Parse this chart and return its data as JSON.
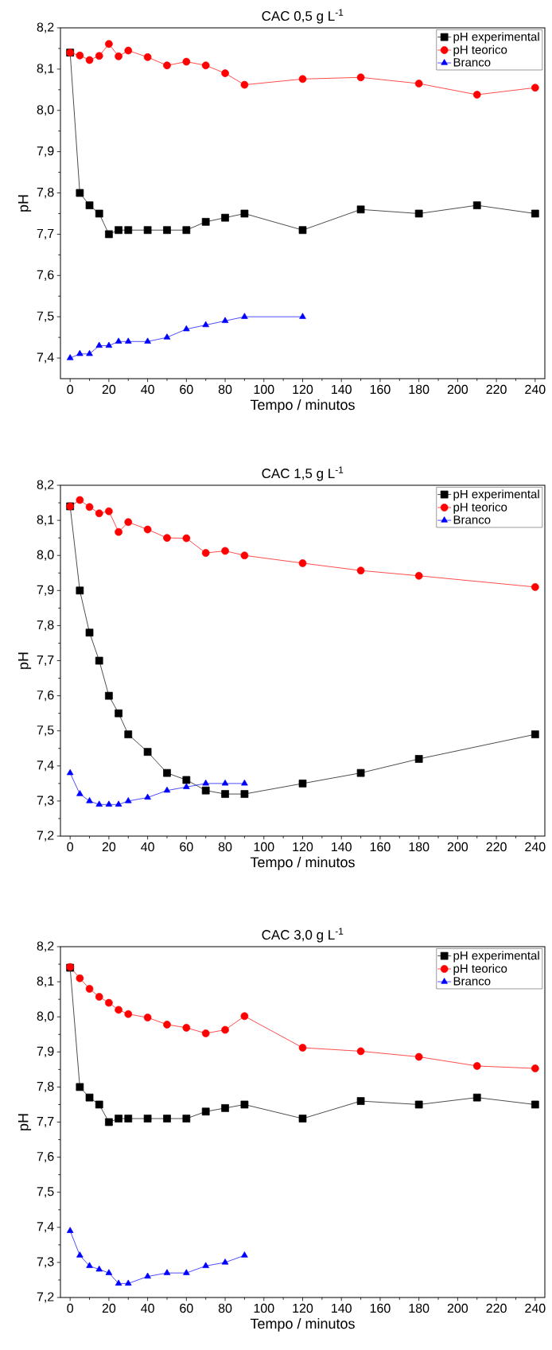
{
  "chart_data": [
    {
      "type": "line",
      "title": "CAC 0,5 g L$^{-1}$",
      "xlabel": "Tempo / minutos",
      "ylabel": "pH",
      "legend": "top right",
      "grid": false,
      "xlim": [
        -5,
        245
      ],
      "ylim": [
        7.35,
        8.2
      ],
      "xticks": [
        0,
        20,
        40,
        60,
        80,
        100,
        120,
        140,
        160,
        180,
        200,
        220,
        240
      ],
      "yticks": [
        {
          "value": 7.4,
          "label": "7,4"
        },
        {
          "value": 7.5,
          "label": "7,5"
        },
        {
          "value": 7.6,
          "label": "7,6"
        },
        {
          "value": 7.7,
          "label": "7,7"
        },
        {
          "value": 7.8,
          "label": "7,8"
        },
        {
          "value": 7.9,
          "label": "7,9"
        },
        {
          "value": 8.0,
          "label": "8,0"
        },
        {
          "value": 8.1,
          "label": "8,1"
        },
        {
          "value": 8.2,
          "label": "8,2"
        }
      ],
      "series": [
        {
          "name": "pH experimental",
          "color": "#000000",
          "marker": "square",
          "x": [
            0,
            5,
            10,
            15,
            20,
            25,
            30,
            40,
            50,
            60,
            70,
            80,
            90,
            120,
            150,
            180,
            210,
            240
          ],
          "values": [
            8.14,
            7.8,
            7.77,
            7.75,
            7.7,
            7.71,
            7.71,
            7.71,
            7.71,
            7.71,
            7.73,
            7.74,
            7.75,
            7.71,
            7.76,
            7.75,
            7.77,
            7.75
          ]
        },
        {
          "name": "pH teorico",
          "color": "#ff0000",
          "marker": "circle",
          "x": [
            0,
            5,
            10,
            15,
            20,
            25,
            30,
            40,
            50,
            60,
            70,
            80,
            90,
            120,
            150,
            180,
            210,
            240
          ],
          "values": [
            8.14,
            8.133,
            8.122,
            8.132,
            8.161,
            8.131,
            8.145,
            8.129,
            8.109,
            8.118,
            8.109,
            8.09,
            8.062,
            8.076,
            8.08,
            8.065,
            8.038,
            8.055
          ]
        },
        {
          "name": "Branco",
          "color": "#0000ff",
          "marker": "triangle",
          "x": [
            0,
            5,
            10,
            15,
            20,
            25,
            30,
            40,
            50,
            60,
            70,
            80,
            90,
            120
          ],
          "values": [
            7.4,
            7.41,
            7.41,
            7.43,
            7.43,
            7.44,
            7.44,
            7.44,
            7.45,
            7.47,
            7.48,
            7.49,
            7.5,
            7.5
          ]
        }
      ]
    },
    {
      "type": "line",
      "title": "CAC 1,5 g L$^{-1}$",
      "xlabel": "Tempo / minutos",
      "ylabel": "pH",
      "legend": "top right",
      "grid": false,
      "xlim": [
        -5,
        245
      ],
      "ylim": [
        7.2,
        8.2
      ],
      "xticks": [
        0,
        20,
        40,
        60,
        80,
        100,
        120,
        140,
        160,
        180,
        200,
        220,
        240
      ],
      "yticks": [
        {
          "value": 7.2,
          "label": "7,2"
        },
        {
          "value": 7.3,
          "label": "7,3"
        },
        {
          "value": 7.4,
          "label": "7,4"
        },
        {
          "value": 7.5,
          "label": "7,5"
        },
        {
          "value": 7.6,
          "label": "7,6"
        },
        {
          "value": 7.7,
          "label": "7,7"
        },
        {
          "value": 7.8,
          "label": "7,8"
        },
        {
          "value": 7.9,
          "label": "7,9"
        },
        {
          "value": 8.0,
          "label": "8,0"
        },
        {
          "value": 8.1,
          "label": "8,1"
        },
        {
          "value": 8.2,
          "label": "8,2"
        }
      ],
      "series": [
        {
          "name": "pH experimental",
          "color": "#000000",
          "marker": "square",
          "x": [
            0,
            5,
            10,
            15,
            20,
            25,
            30,
            40,
            50,
            60,
            70,
            80,
            90,
            120,
            150,
            180,
            240
          ],
          "values": [
            8.14,
            7.9,
            7.78,
            7.7,
            7.6,
            7.55,
            7.49,
            7.44,
            7.38,
            7.36,
            7.33,
            7.32,
            7.32,
            7.35,
            7.38,
            7.42,
            7.49
          ]
        },
        {
          "name": "pH teorico",
          "color": "#ff0000",
          "marker": "circle",
          "x": [
            0,
            5,
            10,
            15,
            20,
            25,
            30,
            40,
            50,
            60,
            70,
            80,
            90,
            120,
            150,
            180,
            240
          ],
          "values": [
            8.14,
            8.158,
            8.138,
            8.12,
            8.126,
            8.067,
            8.095,
            8.074,
            8.05,
            8.049,
            8.007,
            8.013,
            8.0,
            7.978,
            7.957,
            7.942,
            7.91
          ]
        },
        {
          "name": "Branco",
          "color": "#0000ff",
          "marker": "triangle",
          "x": [
            0,
            5,
            10,
            15,
            20,
            25,
            30,
            40,
            50,
            60,
            70,
            80,
            90
          ],
          "values": [
            7.38,
            7.32,
            7.3,
            7.29,
            7.29,
            7.29,
            7.3,
            7.31,
            7.33,
            7.34,
            7.35,
            7.35,
            7.35
          ]
        }
      ]
    },
    {
      "type": "line",
      "title": "CAC 3,0 g L$^{-1}$",
      "xlabel": "Tempo / minutos",
      "ylabel": "pH",
      "legend": "top right",
      "grid": false,
      "xlim": [
        -5,
        245
      ],
      "ylim": [
        7.2,
        8.2
      ],
      "xticks": [
        0,
        20,
        40,
        60,
        80,
        100,
        120,
        140,
        160,
        180,
        200,
        220,
        240
      ],
      "yticks": [
        {
          "value": 7.2,
          "label": "7,2"
        },
        {
          "value": 7.3,
          "label": "7,3"
        },
        {
          "value": 7.4,
          "label": "7,4"
        },
        {
          "value": 7.5,
          "label": "7,5"
        },
        {
          "value": 7.6,
          "label": "7,6"
        },
        {
          "value": 7.7,
          "label": "7,7"
        },
        {
          "value": 7.8,
          "label": "7,8"
        },
        {
          "value": 7.9,
          "label": "7,9"
        },
        {
          "value": 8.0,
          "label": "8,0"
        },
        {
          "value": 8.1,
          "label": "8,1"
        },
        {
          "value": 8.2,
          "label": "8,2"
        }
      ],
      "series": [
        {
          "name": "pH experimental",
          "color": "#000000",
          "marker": "square",
          "x": [
            0,
            5,
            10,
            15,
            20,
            25,
            30,
            40,
            50,
            60,
            70,
            80,
            90,
            120,
            150,
            180,
            210,
            240
          ],
          "values": [
            8.14,
            7.8,
            7.77,
            7.75,
            7.7,
            7.71,
            7.71,
            7.71,
            7.71,
            7.71,
            7.73,
            7.74,
            7.75,
            7.71,
            7.76,
            7.75,
            7.77,
            7.75
          ]
        },
        {
          "name": "pH teorico",
          "color": "#ff0000",
          "marker": "circle",
          "x": [
            0,
            5,
            10,
            15,
            20,
            25,
            30,
            40,
            50,
            60,
            70,
            80,
            90,
            120,
            150,
            180,
            210,
            240
          ],
          "values": [
            8.142,
            8.11,
            8.08,
            8.057,
            8.04,
            8.02,
            8.008,
            7.998,
            7.978,
            7.969,
            7.953,
            7.963,
            8.002,
            7.912,
            7.902,
            7.886,
            7.86,
            7.853
          ]
        },
        {
          "name": "Branco",
          "color": "#0000ff",
          "marker": "triangle",
          "x": [
            0,
            5,
            10,
            15,
            20,
            25,
            30,
            40,
            50,
            60,
            70,
            80,
            90
          ],
          "values": [
            7.39,
            7.32,
            7.29,
            7.28,
            7.27,
            7.24,
            7.24,
            7.26,
            7.27,
            7.27,
            7.29,
            7.3,
            7.32
          ]
        }
      ]
    }
  ]
}
